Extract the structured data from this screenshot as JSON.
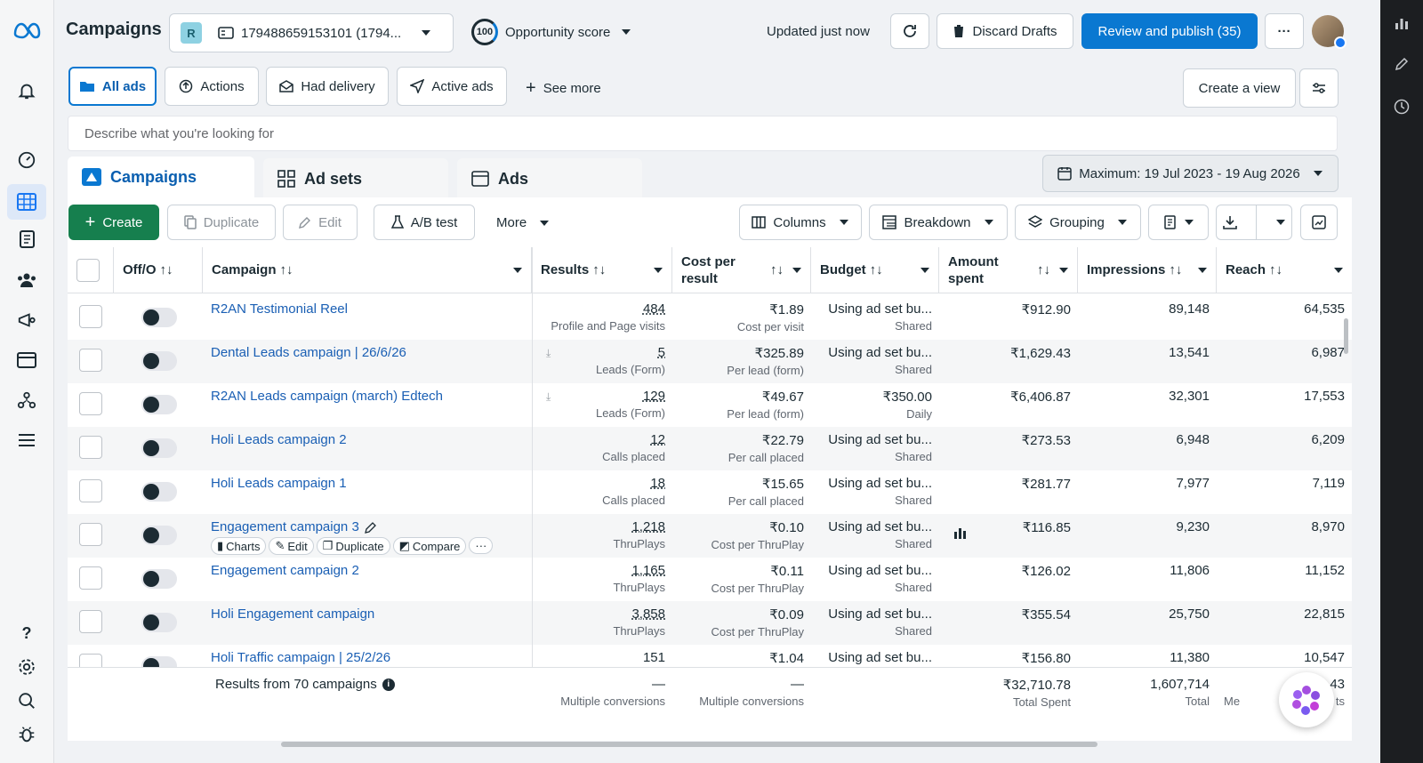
{
  "topbar": {
    "title": "Campaigns",
    "account_initial": "R",
    "account_id": "179488659153101 (1794...",
    "opportunity_score": "100",
    "opportunity_label": "Opportunity score",
    "updated": "Updated just now",
    "discard": "Discard Drafts",
    "review": "Review and publish (35)",
    "more": "···"
  },
  "filters": {
    "all_ads": "All ads",
    "actions": "Actions",
    "had_delivery": "Had delivery",
    "active_ads": "Active ads",
    "see_more": "See more",
    "create_view": "Create a view"
  },
  "search": {
    "placeholder": "Describe what you're looking for"
  },
  "levels": {
    "campaigns": "Campaigns",
    "ad_sets": "Ad sets",
    "ads": "Ads"
  },
  "date_range": "Maximum: 19 Jul 2023 - 19 Aug 2026",
  "toolbar": {
    "create": "Create",
    "duplicate": "Duplicate",
    "edit": "Edit",
    "ab_test": "A/B test",
    "more": "More",
    "columns": "Columns",
    "breakdown": "Breakdown",
    "grouping": "Grouping"
  },
  "columns": {
    "offon": "Off/O",
    "campaign": "Campaign",
    "results": "Results",
    "cost_per_result_1": "Cost per",
    "cost_per_result_2": "result",
    "budget": "Budget",
    "amount_1": "Amount",
    "amount_2": "spent",
    "impressions": "Impressions",
    "reach": "Reach"
  },
  "rows": [
    {
      "name": "R2AN Testimonial Reel",
      "results": "484",
      "results_sub": "Profile and Page visits",
      "cpr": "₹1.89",
      "cpr_sub": "Cost per visit",
      "budget": "Using ad set bu...",
      "budget_sub": "Shared",
      "spent": "₹912.90",
      "impressions": "89,148",
      "reach": "64,535"
    },
    {
      "name": "Dental Leads campaign | 26/6/26",
      "results": "5",
      "results_sub": "Leads (Form)",
      "cpr": "₹325.89",
      "cpr_sub": "Per lead (form)",
      "budget": "Using ad set bu...",
      "budget_sub": "Shared",
      "spent": "₹1,629.43",
      "impressions": "13,541",
      "reach": "6,987"
    },
    {
      "name": "R2AN Leads campaign (march) Edtech",
      "results": "129",
      "results_sub": "Leads (Form)",
      "cpr": "₹49.67",
      "cpr_sub": "Per lead (form)",
      "budget": "₹350.00",
      "budget_sub": "Daily",
      "spent": "₹6,406.87",
      "impressions": "32,301",
      "reach": "17,553"
    },
    {
      "name": "Holi Leads campaign 2",
      "results": "12",
      "results_sub": "Calls placed",
      "cpr": "₹22.79",
      "cpr_sub": "Per call placed",
      "budget": "Using ad set bu...",
      "budget_sub": "Shared",
      "spent": "₹273.53",
      "impressions": "6,948",
      "reach": "6,209"
    },
    {
      "name": "Holi Leads campaign 1",
      "results": "18",
      "results_sub": "Calls placed",
      "cpr": "₹15.65",
      "cpr_sub": "Per call placed",
      "budget": "Using ad set bu...",
      "budget_sub": "Shared",
      "spent": "₹281.77",
      "impressions": "7,977",
      "reach": "7,119"
    },
    {
      "name": "Engagement campaign 3",
      "results": "1,218",
      "results_sub": "ThruPlays",
      "cpr": "₹0.10",
      "cpr_sub": "Cost per ThruPlay",
      "budget": "Using ad set bu...",
      "budget_sub": "Shared",
      "spent": "₹116.85",
      "impressions": "9,230",
      "reach": "8,970"
    },
    {
      "name": "Engagement campaign 2",
      "results": "1,165",
      "results_sub": "ThruPlays",
      "cpr": "₹0.11",
      "cpr_sub": "Cost per ThruPlay",
      "budget": "Using ad set bu...",
      "budget_sub": "Shared",
      "spent": "₹126.02",
      "impressions": "11,806",
      "reach": "11,152"
    },
    {
      "name": "Holi Engagement campaign",
      "results": "3,858",
      "results_sub": "ThruPlays",
      "cpr": "₹0.09",
      "cpr_sub": "Cost per ThruPlay",
      "budget": "Using ad set bu...",
      "budget_sub": "Shared",
      "spent": "₹355.54",
      "impressions": "25,750",
      "reach": "22,815"
    },
    {
      "name": "Holi Traffic campaign | 25/2/26",
      "results": "151",
      "results_sub": "",
      "cpr": "₹1.04",
      "cpr_sub": "",
      "budget": "Using ad set bu...",
      "budget_sub": "",
      "spent": "₹156.80",
      "impressions": "11,380",
      "reach": "10,547"
    }
  ],
  "row_actions": {
    "charts": "Charts",
    "edit": "Edit",
    "duplicate": "Duplicate",
    "compare": "Compare"
  },
  "footer": {
    "label": "Results from 70 campaigns",
    "results": "—",
    "results_sub": "Multiple conversions",
    "cpr": "—",
    "cpr_sub": "Multiple conversions",
    "spent": "₹32,710.78",
    "spent_sub": "Total Spent",
    "impressions": "1,607,714",
    "impressions_sub": "Total",
    "reach": "43",
    "reach_sub_left": "Me",
    "reach_sub_right": "ts"
  },
  "colors": {
    "primary": "#0a78d1",
    "create": "#167f4e",
    "link": "#1a5fb4"
  }
}
